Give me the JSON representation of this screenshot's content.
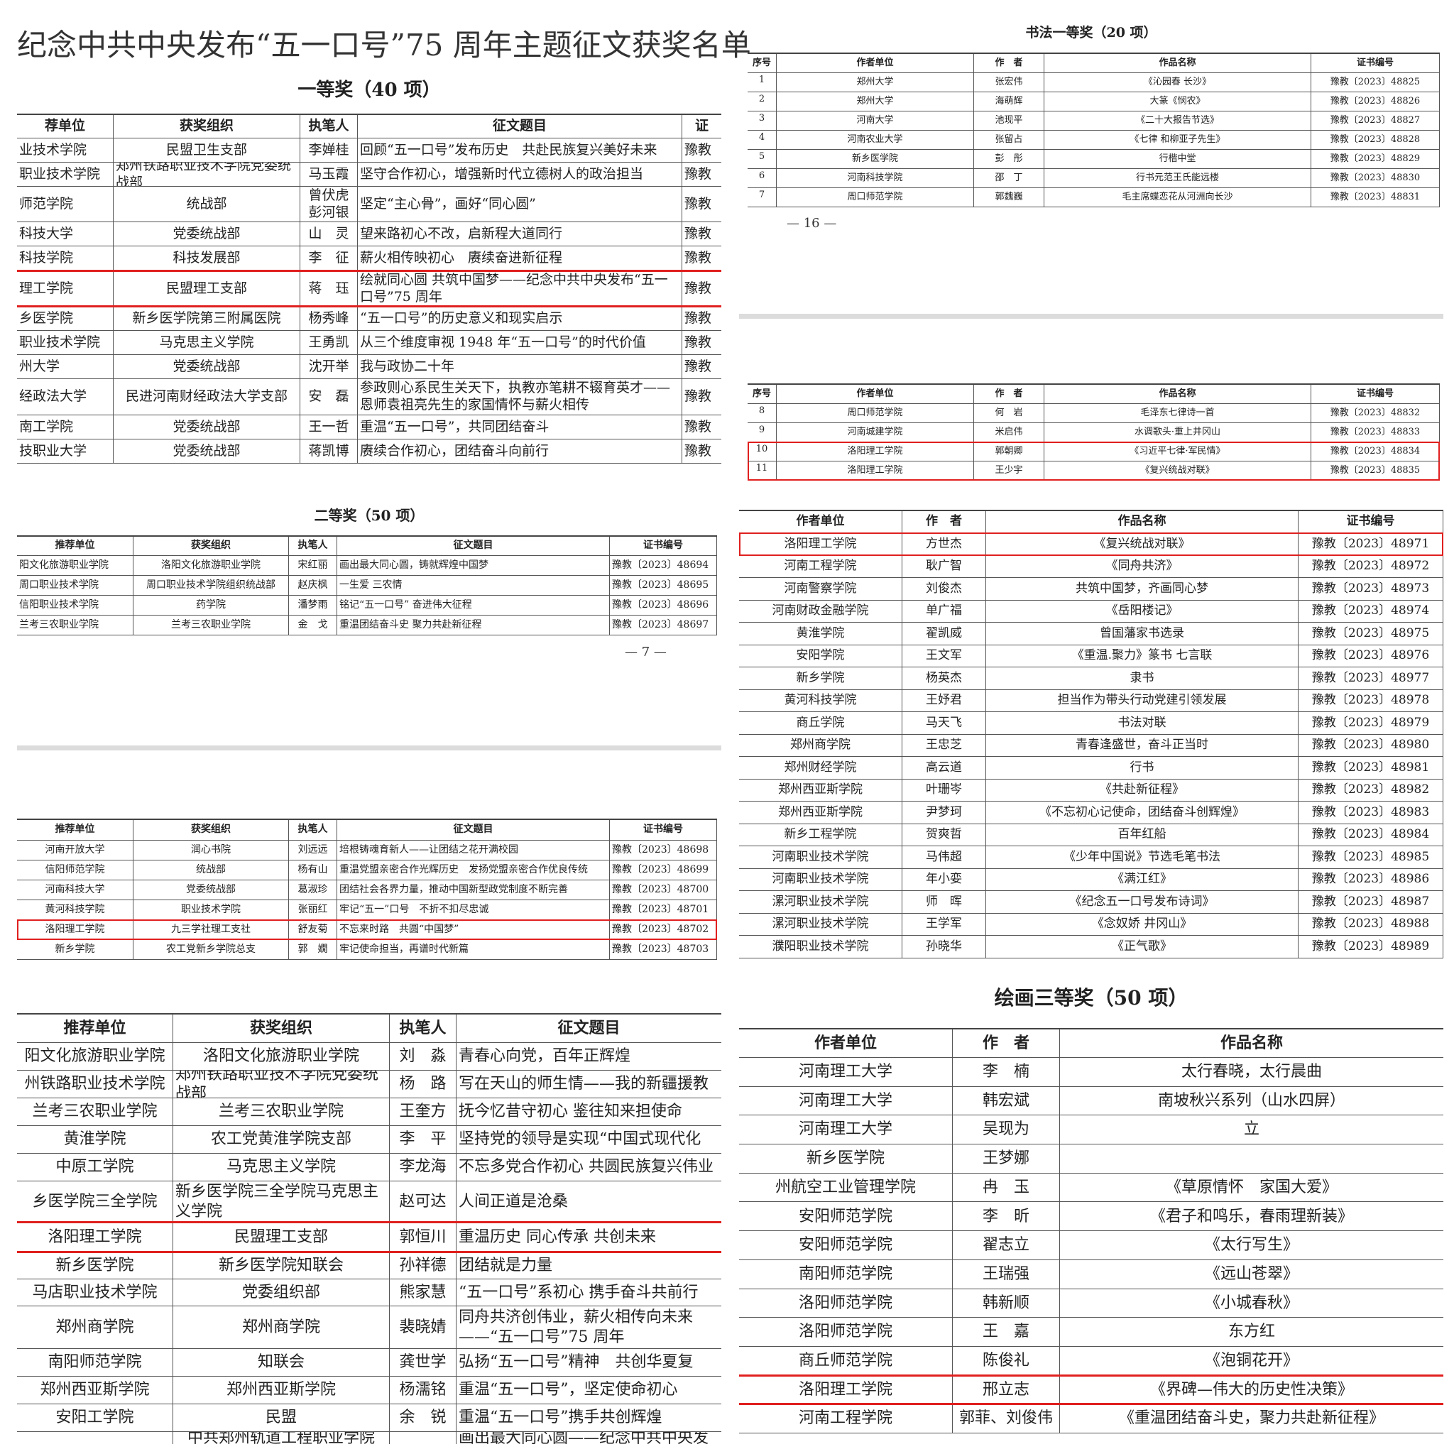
{
  "page_title": "纪念中共中央发布“五一口号”75 周年主题征文获奖名单",
  "left": {
    "first_prize_heading": "一等奖（40 项）",
    "second_prize_heading": "二等奖（50 项）",
    "page_number": "— 7 —"
  },
  "right": {
    "calligraphy_heading": "书法一等奖（20 项）",
    "page_number": "— 16 —",
    "painting_heading": "绘画三等奖（50 项）"
  },
  "highlight_color": "#e0201f",
  "tables": {
    "t1": {
      "header": [
        "荐单位",
        "获奖组织",
        "执笔人",
        "征文题目",
        "证"
      ],
      "rows": [
        [
          "业技术学院",
          "民盟卫生支部",
          "李婵桂",
          "回顾“五一口号”发布历史　共赴民族复兴美好未来",
          "豫教"
        ],
        [
          "职业技术学院",
          "郑州铁路职业技术学院党委统战部",
          "马玉霞",
          "坚守合作初心，增强新时代立德树人的政治担当",
          "豫教"
        ],
        [
          "师范学院",
          "统战部",
          "曾伏虎\n彭河银",
          "坚定“主心骨”，画好“同心圆”",
          "豫教"
        ],
        [
          "科技大学",
          "党委统战部",
          "山　灵",
          "望来路初心不改，启新程大道同行",
          "豫教"
        ],
        [
          "科技学院",
          "科技发展部",
          "李　征",
          "薪火相传映初心　赓续奋进新征程",
          "豫教"
        ],
        [
          "理工学院",
          "民盟理工支部",
          "蒋　珏",
          "绘就同心圆 共筑中国梦——纪念中共中央发布“五一口号”75 周年",
          "豫教"
        ],
        [
          "乡医学院",
          "新乡医学院第三附属医院",
          "杨秀峰",
          "“五一口号”的历史意义和现实启示",
          "豫教"
        ],
        [
          "职业技术学院",
          "马克思主义学院",
          "王勇凯",
          "从三个维度审视 1948 年“五一口号”的时代价值",
          "豫教"
        ],
        [
          "州大学",
          "党委统战部",
          "沈开举",
          "我与政协二十年",
          "豫教"
        ],
        [
          "经政法大学",
          "民进河南财经政法大学支部",
          "安　磊",
          "参政则心系民生关天下，执教亦笔耕不辍育英才——恩师袁祖亮先生的家国情怀与薪火相传",
          "豫教"
        ],
        [
          "南工学院",
          "党委统战部",
          "王一哲",
          "重温“五一口号”，共同团结奋斗",
          "豫教"
        ],
        [
          "技职业大学",
          "党委统战部",
          "蒋凯博",
          "赓续合作初心，团结奋斗向前行",
          "豫教"
        ]
      ]
    },
    "t2": {
      "header": [
        "推荐单位",
        "获奖组织",
        "执笔人",
        "征文题目",
        "证书编号"
      ],
      "rows": [
        [
          "阳文化旅游职业学院",
          "洛阳文化旅游职业学院",
          "宋红丽",
          "画出最大同心圆，铸就辉煌中国梦",
          "豫教〔2023〕48694"
        ],
        [
          "周口职业技术学院",
          "周口职业技术学院组织统战部",
          "赵庆枫",
          "一生爱 三农情",
          "豫教〔2023〕48695"
        ],
        [
          "信阳职业技术学院",
          "药学院",
          "潘梦雨",
          "铭记“五一口号” 奋进伟大征程",
          "豫教〔2023〕48696"
        ],
        [
          "兰考三农职业学院",
          "兰考三农职业学院",
          "金　戈",
          "重温团结奋斗史 聚力共赴新征程",
          "豫教〔2023〕48697"
        ]
      ]
    },
    "t3": {
      "header": [
        "推荐单位",
        "获奖组织",
        "执笔人",
        "征文题目",
        "证书编号"
      ],
      "rows": [
        [
          "河南开放大学",
          "润心书院",
          "刘远远",
          "培根铸魂育新人——让团结之花开满校园",
          "豫教〔2023〕48698"
        ],
        [
          "信阳师范学院",
          "统战部",
          "杨有山",
          "重温党盟亲密合作光辉历史　发扬党盟亲密合作优良传统",
          "豫教〔2023〕48699"
        ],
        [
          "河南科技大学",
          "党委统战部",
          "葛淑珍",
          "团结社会各界力量，推动中国新型政党制度不断完善",
          "豫教〔2023〕48700"
        ],
        [
          "黄河科技学院",
          "职业技术学院",
          "张丽红",
          "牢记“五一”口号　不折不扣尽忠诚",
          "豫教〔2023〕48701"
        ],
        [
          "洛阳理工学院",
          "九三学社理工支社",
          "舒友菊",
          "不忘来时路　共圆“中国梦”",
          "豫教〔2023〕48702"
        ],
        [
          "新乡学院",
          "农工党新乡学院总支",
          "郭　嫺",
          "牢记使命担当，再谱时代新篇",
          "豫教〔2023〕48703"
        ]
      ]
    },
    "t4": {
      "header": [
        "推荐单位",
        "获奖组织",
        "执笔人",
        "征文题目"
      ],
      "rows": [
        [
          "阳文化旅游职业学院",
          "洛阳文化旅游职业学院",
          "刘　淼",
          "青春心向党，百年正辉煌"
        ],
        [
          "州铁路职业技术学院",
          "郑州铁路职业技术学院党委统战部",
          "杨　路",
          "写在天山的师生情——我的新疆援教"
        ],
        [
          "兰考三农职业学院",
          "兰考三农职业学院",
          "王奎方",
          "抚今忆昔守初心 鉴往知来担使命"
        ],
        [
          "黄淮学院",
          "农工党黄淮学院支部",
          "李　平",
          "坚持党的领导是实现“中国式现代化"
        ],
        [
          "中原工学院",
          "马克思主义学院",
          "李龙海",
          "不忘多党合作初心 共圆民族复兴伟业"
        ],
        [
          "乡医学院三全学院",
          "新乡医学院三全学院马克思主义学院",
          "赵可达",
          "人间正道是沧桑"
        ],
        [
          "洛阳理工学院",
          "民盟理工支部",
          "郭恒川",
          "重温历史 同心传承 共创未来"
        ],
        [
          "新乡医学院",
          "新乡医学院知联会",
          "孙祥德",
          "团结就是力量"
        ],
        [
          "马店职业技术学院",
          "党委组织部",
          "熊家慧",
          "“五一口号”系初心 携手奋斗共前行"
        ],
        [
          "郑州商学院",
          "郑州商学院",
          "裴晓婧",
          "同舟共济创伟业，薪火相传向未来——“五一口号”75 周年"
        ],
        [
          "南阳师范学院",
          "知联会",
          "龚世学",
          "弘扬“五一口号”精神　共创华夏复"
        ],
        [
          "郑州西亚斯学院",
          "郑州西亚斯学院",
          "杨濡铭",
          "重温“五一口号”，坚定使命初心"
        ],
        [
          "安阳工学院",
          "民盟",
          "余　锐",
          "重温“五一口号”携手共创辉煌"
        ],
        [
          "",
          "中共郑州轨道工程职业学院",
          "",
          "画出最大同心圆——纪念中共中央发"
        ]
      ]
    },
    "t5": {
      "header": [
        "序号",
        "作者单位",
        "作　者",
        "作品名称",
        "证书编号"
      ],
      "rows": [
        [
          "1",
          "郑州大学",
          "张宏伟",
          "《沁园春 长沙》",
          "豫教〔2023〕48825"
        ],
        [
          "2",
          "郑州大学",
          "海萌辉",
          "大篆《悯农》",
          "豫教〔2023〕48826"
        ],
        [
          "3",
          "河南大学",
          "池现平",
          "《二十大报告节选》",
          "豫教〔2023〕48827"
        ],
        [
          "4",
          "河南农业大学",
          "张留占",
          "《七律 和柳亚子先生》",
          "豫教〔2023〕48828"
        ],
        [
          "5",
          "新乡医学院",
          "彭　彤",
          "行楷中堂",
          "豫教〔2023〕48829"
        ],
        [
          "6",
          "河南科技学院",
          "邵　丁",
          "行书元范王氏能远楼",
          "豫教〔2023〕48830"
        ],
        [
          "7",
          "周口师范学院",
          "郭魏巍",
          "毛主席蝶恋花从河洲向长沙",
          "豫教〔2023〕48831"
        ]
      ]
    },
    "t6": {
      "header": [
        "序号",
        "作者单位",
        "作　者",
        "作品名称",
        "证书编号"
      ],
      "rows": [
        [
          "8",
          "周口师范学院",
          "何　岩",
          "毛泽东七律诗一首",
          "豫教〔2023〕48832"
        ],
        [
          "9",
          "河南城建学院",
          "米启伟",
          "水调歌头·重上井冈山",
          "豫教〔2023〕48833"
        ],
        [
          "10",
          "洛阳理工学院",
          "郭朝卿",
          "《习近平七律·军民情》",
          "豫教〔2023〕48834"
        ],
        [
          "11",
          "洛阳理工学院",
          "王少宇",
          "《复兴统战对联》",
          "豫教〔2023〕48835"
        ]
      ]
    },
    "t7": {
      "header": [
        "作者单位",
        "作　者",
        "作品名称",
        "证书编号"
      ],
      "rows": [
        [
          "洛阳理工学院",
          "方世杰",
          "《复兴统战对联》",
          "豫教〔2023〕48971"
        ],
        [
          "河南工程学院",
          "耿广智",
          "《同舟共济》",
          "豫教〔2023〕48972"
        ],
        [
          "河南警察学院",
          "刘俊杰",
          "共筑中国梦，齐画同心梦",
          "豫教〔2023〕48973"
        ],
        [
          "河南财政金融学院",
          "单广福",
          "《岳阳楼记》",
          "豫教〔2023〕48974"
        ],
        [
          "黄淮学院",
          "翟凯威",
          "曾国藩家书选录",
          "豫教〔2023〕48975"
        ],
        [
          "安阳学院",
          "王文军",
          "《重温.聚力》篆书 七言联",
          "豫教〔2023〕48976"
        ],
        [
          "新乡学院",
          "杨英杰",
          "隶书",
          "豫教〔2023〕48977"
        ],
        [
          "黄河科技学院",
          "王妤君",
          "担当作为带头行动党建引领发展",
          "豫教〔2023〕48978"
        ],
        [
          "商丘学院",
          "马天飞",
          "书法对联",
          "豫教〔2023〕48979"
        ],
        [
          "郑州商学院",
          "王忠芝",
          "青春逢盛世，奋斗正当时",
          "豫教〔2023〕48980"
        ],
        [
          "郑州财经学院",
          "高云道",
          "行书",
          "豫教〔2023〕48981"
        ],
        [
          "郑州西亚斯学院",
          "叶珊岑",
          "《共赴新征程》",
          "豫教〔2023〕48982"
        ],
        [
          "郑州西亚斯学院",
          "尹梦珂",
          "《不忘初心记使命，团结奋斗创辉煌》",
          "豫教〔2023〕48983"
        ],
        [
          "新乡工程学院",
          "贺爽哲",
          "百年红船",
          "豫教〔2023〕48984"
        ],
        [
          "河南职业技术学院",
          "马伟超",
          "《少年中国说》节选毛笔书法",
          "豫教〔2023〕48985"
        ],
        [
          "河南职业技术学院",
          "年小娈",
          "《满江红》",
          "豫教〔2023〕48986"
        ],
        [
          "漯河职业技术学院",
          "师　晖",
          "《纪念五一口号发布诗词》",
          "豫教〔2023〕48987"
        ],
        [
          "漯河职业技术学院",
          "王学军",
          "《念奴娇 井冈山》",
          "豫教〔2023〕48988"
        ],
        [
          "濮阳职业技术学院",
          "孙晓华",
          "《正气歌》",
          "豫教〔2023〕48989"
        ]
      ]
    },
    "t8": {
      "header": [
        "作者单位",
        "作　者",
        "作品名称"
      ],
      "rows": [
        [
          "河南理工大学",
          "李　楠",
          "太行春晓，太行晨曲"
        ],
        [
          "河南理工大学",
          "韩宏斌",
          "南坡秋兴系列（山水四屏）"
        ],
        [
          "河南理工大学",
          "吴现为",
          "立"
        ],
        [
          "新乡医学院",
          "王梦娜",
          ""
        ],
        [
          "州航空工业管理学院",
          "冉　玉",
          "《草原情怀　家国大爱》"
        ],
        [
          "安阳师范学院",
          "李　昕",
          "《君子和鸣乐，春雨理新装》"
        ],
        [
          "安阳师范学院",
          "翟志立",
          "《太行写生》"
        ],
        [
          "南阳师范学院",
          "王瑞强",
          "《远山苍翠》"
        ],
        [
          "洛阳师范学院",
          "韩新顺",
          "《小城春秋》"
        ],
        [
          "洛阳师范学院",
          "王　嘉",
          "东方红"
        ],
        [
          "商丘师范学院",
          "陈俊礼",
          "《泡铜花开》"
        ],
        [
          "洛阳理工学院",
          "邢立志",
          "《界碑—伟大的历史性决策》"
        ],
        [
          "河南工程学院",
          "郭菲、刘俊伟",
          "《重温团结奋斗史，聚力共赴新征程》"
        ]
      ]
    }
  }
}
